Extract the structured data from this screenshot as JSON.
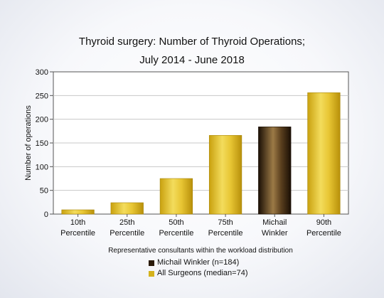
{
  "chart_data": {
    "type": "bar",
    "title": "Thyroid surgery: Number of Thyroid Operations;",
    "subtitle": "July 2014 - June 2018",
    "xlabel": "Representative consultants within the workload distribution",
    "ylabel": "Number of operations",
    "ylim": [
      0,
      300
    ],
    "yticks": [
      0,
      50,
      100,
      150,
      200,
      250,
      300
    ],
    "grid": true,
    "categories": [
      [
        "10th",
        "Percentile"
      ],
      [
        "25th",
        "Percentile"
      ],
      [
        "50th",
        "Percentile"
      ],
      [
        "75th",
        "Percentile"
      ],
      [
        "Michail",
        "Winkler"
      ],
      [
        "90th",
        "Percentile"
      ]
    ],
    "values": [
      9,
      24,
      75,
      166,
      184,
      256
    ],
    "bar_series": [
      "all",
      "all",
      "all",
      "all",
      "highlight",
      "all"
    ],
    "colors": {
      "highlight": "#2a1a0a",
      "all": "#d4b21c"
    },
    "legend": {
      "placement": "bottom",
      "items": [
        {
          "key": "highlight",
          "label": "Michail Winkler (n=184)",
          "color": "#2a1a0a"
        },
        {
          "key": "all",
          "label": "All Surgeons (median=74)",
          "color": "#d4b21c"
        }
      ]
    }
  }
}
